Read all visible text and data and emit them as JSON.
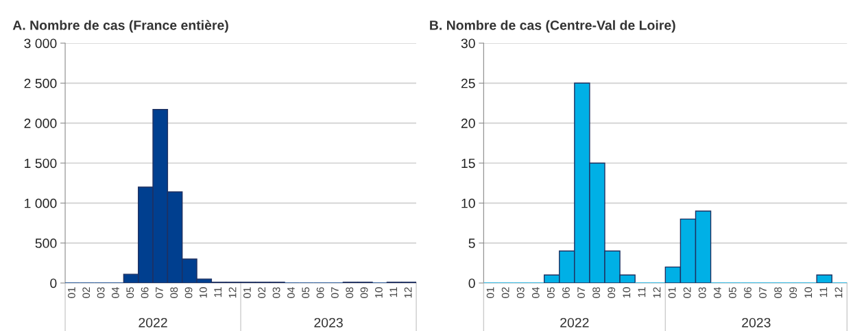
{
  "chart_data": [
    {
      "type": "bar",
      "title": "A. Nombre de cas (France entière)",
      "categories": [
        "01",
        "02",
        "03",
        "04",
        "05",
        "06",
        "07",
        "08",
        "09",
        "10",
        "11",
        "12",
        "01",
        "02",
        "03",
        "04",
        "05",
        "06",
        "07",
        "08",
        "09",
        "10",
        "11",
        "12"
      ],
      "values": [
        0,
        0,
        0,
        0,
        110,
        1200,
        2170,
        1140,
        300,
        50,
        10,
        10,
        10,
        10,
        10,
        0,
        0,
        0,
        0,
        10,
        10,
        0,
        10,
        10
      ],
      "color": "#003f8f",
      "ylim": [
        0,
        3000
      ],
      "yticks": [
        0,
        500,
        {
          "value": 1000,
          "label": "1 000"
        },
        {
          "value": 1500,
          "label": "1 500"
        },
        {
          "value": 2000,
          "label": "2 000"
        },
        {
          "value": 2500,
          "label": "2 500"
        },
        {
          "value": 3000,
          "label": "3 000"
        }
      ],
      "grid": "y",
      "annotations": [
        "2022",
        "2023"
      ]
    },
    {
      "type": "bar",
      "title": "B. Nombre de cas (Centre-Val de Loire)",
      "categories": [
        "01",
        "02",
        "03",
        "04",
        "05",
        "06",
        "07",
        "08",
        "09",
        "10",
        "11",
        "12",
        "01",
        "02",
        "03",
        "04",
        "05",
        "06",
        "07",
        "08",
        "09",
        "10",
        "11",
        "12"
      ],
      "values": [
        0,
        0,
        0,
        0,
        1,
        4,
        25,
        15,
        4,
        1,
        0,
        0,
        2,
        8,
        9,
        0,
        0,
        0,
        0,
        0,
        0,
        0,
        1,
        0
      ],
      "color": "#00b0e6",
      "ylim": [
        0,
        30
      ],
      "yticks": [
        0,
        5,
        10,
        15,
        20,
        25,
        30
      ],
      "grid": "y",
      "annotations": [
        "2022",
        "2023"
      ]
    }
  ]
}
